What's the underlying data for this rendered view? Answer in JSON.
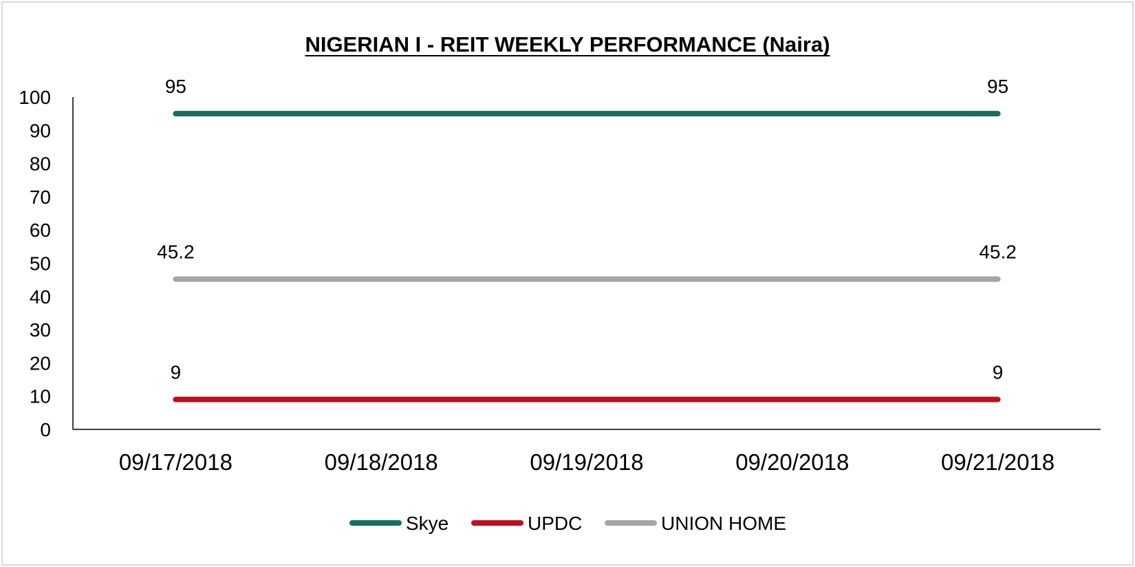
{
  "chart_data": {
    "type": "line",
    "title": "NIGERIAN I - REIT WEEKLY PERFORMANCE (Naira)",
    "xlabel": "",
    "ylabel": "",
    "ylim": [
      0,
      100
    ],
    "yticks": [
      0,
      10,
      20,
      30,
      40,
      50,
      60,
      70,
      80,
      90,
      100
    ],
    "categories": [
      "09/17/2018",
      "09/18/2018",
      "09/19/2018",
      "09/20/2018",
      "09/21/2018"
    ],
    "series": [
      {
        "name": "Skye",
        "color": "#156f5f",
        "values": [
          95,
          95,
          95,
          95,
          95
        ],
        "data_labels": [
          "95",
          "",
          "",
          "",
          "95"
        ]
      },
      {
        "name": "UPDC",
        "color": "#c00d1e",
        "values": [
          9,
          9,
          9,
          9,
          9
        ],
        "data_labels": [
          "9",
          "",
          "",
          "",
          "9"
        ]
      },
      {
        "name": "UNION HOME",
        "color": "#a6a6a6",
        "values": [
          45.2,
          45.2,
          45.2,
          45.2,
          45.2
        ],
        "data_labels": [
          "45.2",
          "",
          "",
          "",
          "45.2"
        ]
      }
    ],
    "grid": false,
    "legend": "bottom-center"
  }
}
